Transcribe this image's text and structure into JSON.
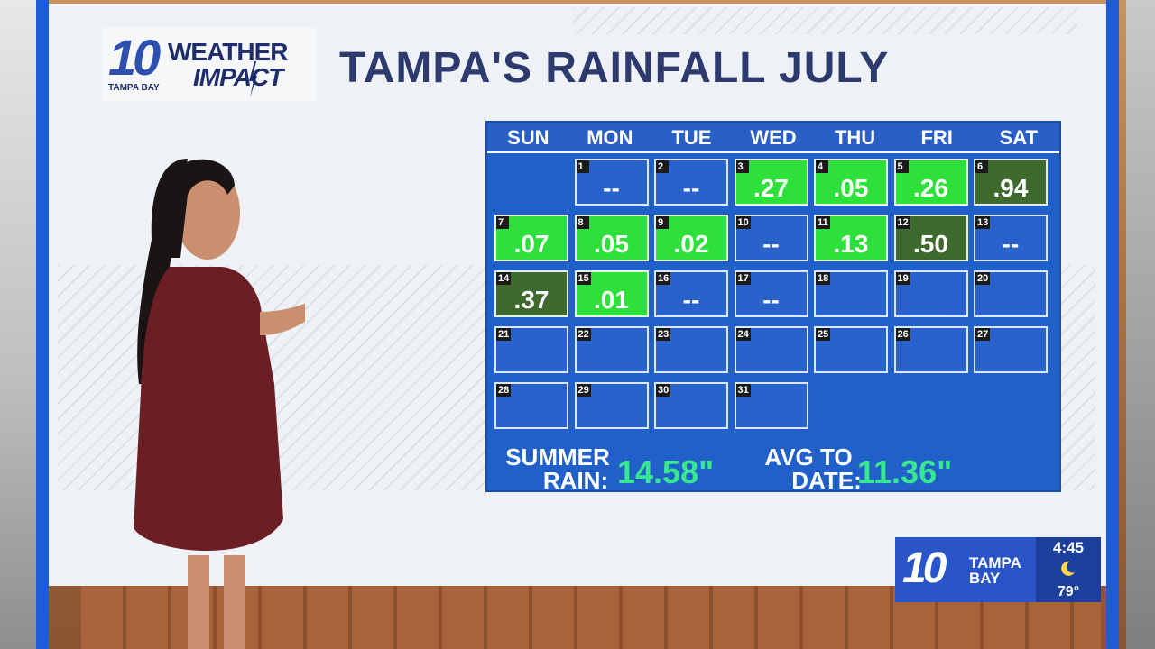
{
  "logo": {
    "number": "10",
    "line1": "WEATHER",
    "line2": "IMPACT",
    "sub": "TAMPA BAY"
  },
  "title": "TAMPA'S RAINFALL JULY",
  "calendar": {
    "days_of_week": [
      "SUN",
      "MON",
      "TUE",
      "WED",
      "THU",
      "FRI",
      "SAT"
    ],
    "days": [
      {
        "day": "1",
        "value": "--",
        "style": "blue"
      },
      {
        "day": "2",
        "value": "--",
        "style": "blue"
      },
      {
        "day": "3",
        "value": ".27",
        "style": "green"
      },
      {
        "day": "4",
        "value": ".05",
        "style": "green"
      },
      {
        "day": "5",
        "value": ".26",
        "style": "green"
      },
      {
        "day": "6",
        "value": ".94",
        "style": "dark"
      },
      {
        "day": "7",
        "value": ".07",
        "style": "green"
      },
      {
        "day": "8",
        "value": ".05",
        "style": "green"
      },
      {
        "day": "9",
        "value": ".02",
        "style": "green"
      },
      {
        "day": "10",
        "value": "--",
        "style": "blue"
      },
      {
        "day": "11",
        "value": ".13",
        "style": "green"
      },
      {
        "day": "12",
        "value": ".50",
        "style": "dark"
      },
      {
        "day": "13",
        "value": "--",
        "style": "blue"
      },
      {
        "day": "14",
        "value": ".37",
        "style": "dark"
      },
      {
        "day": "15",
        "value": ".01",
        "style": "green"
      },
      {
        "day": "16",
        "value": "--",
        "style": "blue"
      },
      {
        "day": "17",
        "value": "--",
        "style": "blue"
      },
      {
        "day": "18",
        "value": "",
        "style": "blue"
      },
      {
        "day": "19",
        "value": "",
        "style": "blue"
      },
      {
        "day": "20",
        "value": "",
        "style": "blue"
      },
      {
        "day": "21",
        "value": "",
        "style": "blue"
      },
      {
        "day": "22",
        "value": "",
        "style": "blue"
      },
      {
        "day": "23",
        "value": "",
        "style": "blue"
      },
      {
        "day": "24",
        "value": "",
        "style": "blue"
      },
      {
        "day": "25",
        "value": "",
        "style": "blue"
      },
      {
        "day": "26",
        "value": "",
        "style": "blue"
      },
      {
        "day": "27",
        "value": "",
        "style": "blue"
      },
      {
        "day": "28",
        "value": "",
        "style": "blue"
      },
      {
        "day": "29",
        "value": "",
        "style": "blue"
      },
      {
        "day": "30",
        "value": "",
        "style": "blue"
      },
      {
        "day": "31",
        "value": "",
        "style": "blue"
      }
    ],
    "first_weekday_index": 1
  },
  "summary": {
    "summer_label_1": "SUMMER",
    "summer_label_2": "RAIN:",
    "summer_value": "14.58\"",
    "avg_label_1": "AVG TO",
    "avg_label_2": "DATE:",
    "avg_value": "11.36\""
  },
  "bug": {
    "number": "10",
    "station_1": "TAMPA",
    "station_2": "BAY",
    "time": "4:45",
    "icon": "moon-icon",
    "temp": "79°"
  },
  "colors": {
    "title": "#2c3a6e",
    "calendar_blue": "#2160c9",
    "green": "#2ee03a",
    "dark_green": "#3f6a2e",
    "summary_value": "#37e890",
    "frame_blue": "#1e5bd6"
  }
}
